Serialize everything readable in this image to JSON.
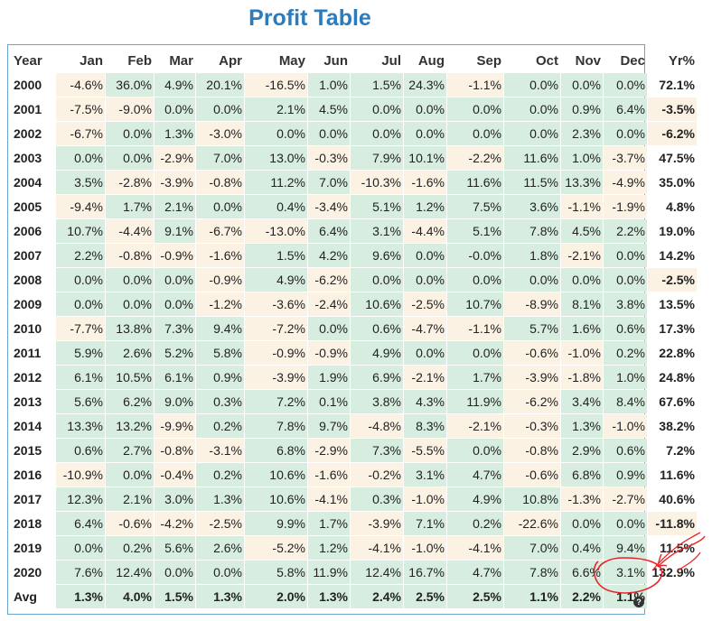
{
  "title": "Profit Table",
  "chart_data": {
    "type": "table",
    "columns": [
      "Year",
      "Jan",
      "Feb",
      "Mar",
      "Apr",
      "May",
      "Jun",
      "Jul",
      "Aug",
      "Sep",
      "Oct",
      "Nov",
      "Dec",
      "Yr%"
    ],
    "rows": [
      [
        "2000",
        "-4.6%",
        "36.0%",
        "4.9%",
        "20.1%",
        "-16.5%",
        "1.0%",
        "1.5%",
        "24.3%",
        "-1.1%",
        "0.0%",
        "0.0%",
        "0.0%",
        "72.1%"
      ],
      [
        "2001",
        "-7.5%",
        "-9.0%",
        "0.0%",
        "0.0%",
        "2.1%",
        "4.5%",
        "0.0%",
        "0.0%",
        "0.0%",
        "0.0%",
        "0.9%",
        "6.4%",
        "-3.5%"
      ],
      [
        "2002",
        "-6.7%",
        "0.0%",
        "1.3%",
        "-3.0%",
        "0.0%",
        "0.0%",
        "0.0%",
        "0.0%",
        "0.0%",
        "0.0%",
        "2.3%",
        "0.0%",
        "-6.2%"
      ],
      [
        "2003",
        "0.0%",
        "0.0%",
        "-2.9%",
        "7.0%",
        "13.0%",
        "-0.3%",
        "7.9%",
        "10.1%",
        "-2.2%",
        "11.6%",
        "1.0%",
        "-3.7%",
        "47.5%"
      ],
      [
        "2004",
        "3.5%",
        "-2.8%",
        "-3.9%",
        "-0.8%",
        "11.2%",
        "7.0%",
        "-10.3%",
        "-1.6%",
        "11.6%",
        "11.5%",
        "13.3%",
        "-4.9%",
        "35.0%"
      ],
      [
        "2005",
        "-9.4%",
        "1.7%",
        "2.1%",
        "0.0%",
        "0.4%",
        "-3.4%",
        "5.1%",
        "1.2%",
        "7.5%",
        "3.6%",
        "-1.1%",
        "-1.9%",
        "4.8%"
      ],
      [
        "2006",
        "10.7%",
        "-4.4%",
        "9.1%",
        "-6.7%",
        "-13.0%",
        "6.4%",
        "3.1%",
        "-4.4%",
        "5.1%",
        "7.8%",
        "4.5%",
        "2.2%",
        "19.0%"
      ],
      [
        "2007",
        "2.2%",
        "-0.8%",
        "-0.9%",
        "-1.6%",
        "1.5%",
        "4.2%",
        "9.6%",
        "0.0%",
        "-0.0%",
        "1.8%",
        "-2.1%",
        "0.0%",
        "14.2%"
      ],
      [
        "2008",
        "0.0%",
        "0.0%",
        "0.0%",
        "-0.9%",
        "4.9%",
        "-6.2%",
        "0.0%",
        "0.0%",
        "0.0%",
        "0.0%",
        "0.0%",
        "0.0%",
        "-2.5%"
      ],
      [
        "2009",
        "0.0%",
        "0.0%",
        "0.0%",
        "-1.2%",
        "-3.6%",
        "-2.4%",
        "10.6%",
        "-2.5%",
        "10.7%",
        "-8.9%",
        "8.1%",
        "3.8%",
        "13.5%"
      ],
      [
        "2010",
        "-7.7%",
        "13.8%",
        "7.3%",
        "9.4%",
        "-7.2%",
        "0.0%",
        "0.6%",
        "-4.7%",
        "-1.1%",
        "5.7%",
        "1.6%",
        "0.6%",
        "17.3%"
      ],
      [
        "2011",
        "5.9%",
        "2.6%",
        "5.2%",
        "5.8%",
        "-0.9%",
        "-0.9%",
        "4.9%",
        "0.0%",
        "0.0%",
        "-0.6%",
        "-1.0%",
        "0.2%",
        "22.8%"
      ],
      [
        "2012",
        "6.1%",
        "10.5%",
        "6.1%",
        "0.9%",
        "-3.9%",
        "1.9%",
        "6.9%",
        "-2.1%",
        "1.7%",
        "-3.9%",
        "-1.8%",
        "1.0%",
        "24.8%"
      ],
      [
        "2013",
        "5.6%",
        "6.2%",
        "9.0%",
        "0.3%",
        "7.2%",
        "0.1%",
        "3.8%",
        "4.3%",
        "11.9%",
        "-6.2%",
        "3.4%",
        "8.4%",
        "67.6%"
      ],
      [
        "2014",
        "13.3%",
        "13.2%",
        "-9.9%",
        "0.2%",
        "7.8%",
        "9.7%",
        "-4.8%",
        "8.3%",
        "-2.1%",
        "-0.3%",
        "1.3%",
        "-1.0%",
        "38.2%"
      ],
      [
        "2015",
        "0.6%",
        "2.7%",
        "-0.8%",
        "-3.1%",
        "6.8%",
        "-2.9%",
        "7.3%",
        "-5.5%",
        "0.0%",
        "-0.8%",
        "2.9%",
        "0.6%",
        "7.2%"
      ],
      [
        "2016",
        "-10.9%",
        "0.0%",
        "-0.4%",
        "0.2%",
        "10.6%",
        "-1.6%",
        "-0.2%",
        "3.1%",
        "4.7%",
        "-0.6%",
        "6.8%",
        "0.9%",
        "11.6%"
      ],
      [
        "2017",
        "12.3%",
        "2.1%",
        "3.0%",
        "1.3%",
        "10.6%",
        "-4.1%",
        "0.3%",
        "-1.0%",
        "4.9%",
        "10.8%",
        "-1.3%",
        "-2.7%",
        "40.6%"
      ],
      [
        "2018",
        "6.4%",
        "-0.6%",
        "-4.2%",
        "-2.5%",
        "9.9%",
        "1.7%",
        "-3.9%",
        "7.1%",
        "0.2%",
        "-22.6%",
        "0.0%",
        "0.0%",
        "-11.8%"
      ],
      [
        "2019",
        "0.0%",
        "0.2%",
        "5.6%",
        "2.6%",
        "-5.2%",
        "1.2%",
        "-4.1%",
        "-1.0%",
        "-4.1%",
        "7.0%",
        "0.4%",
        "9.4%",
        "11.5%"
      ],
      [
        "2020",
        "7.6%",
        "12.4%",
        "0.0%",
        "0.0%",
        "5.8%",
        "11.9%",
        "12.4%",
        "16.7%",
        "4.7%",
        "7.8%",
        "6.6%",
        "3.1%",
        "132.9%"
      ]
    ],
    "avg_row": [
      "Avg",
      "1.3%",
      "4.0%",
      "1.5%",
      "1.3%",
      "2.0%",
      "1.3%",
      "2.4%",
      "2.5%",
      "2.5%",
      "1.1%",
      "2.2%",
      "1.1%",
      ""
    ],
    "colors": {
      "positive": "#d7ede0",
      "negative": "#fbf2e4",
      "title": "#2b7bbf",
      "annotation": "#e8262a"
    }
  },
  "help_icon": "?"
}
